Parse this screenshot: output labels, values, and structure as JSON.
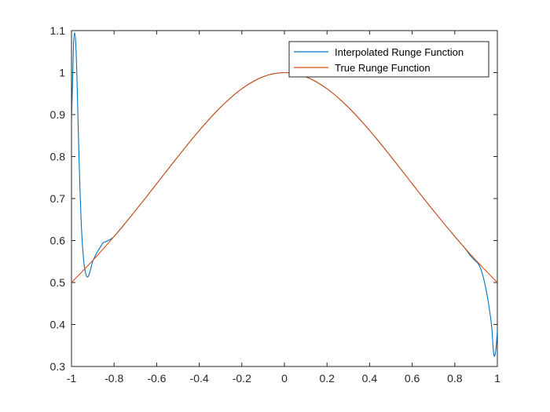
{
  "chart_data": {
    "type": "line",
    "xlim": [
      -1,
      1
    ],
    "ylim": [
      0.3,
      1.1
    ],
    "xticks": [
      -1,
      -0.8,
      -0.6,
      -0.4,
      -0.2,
      0,
      0.2,
      0.4,
      0.6,
      0.8,
      1
    ],
    "yticks": [
      0.3,
      0.4,
      0.5,
      0.6,
      0.7,
      0.8,
      0.9,
      1,
      1.1
    ],
    "xtick_labels": [
      "-1",
      "-0.8",
      "-0.6",
      "-0.4",
      "-0.2",
      "0",
      "0.2",
      "0.4",
      "0.6",
      "0.8",
      "1"
    ],
    "ytick_labels": [
      "0.3",
      "0.4",
      "0.5",
      "0.6",
      "0.7",
      "0.8",
      "0.9",
      "1",
      "1.1"
    ],
    "grid": false,
    "box": true,
    "legend_position": "top-right",
    "series": [
      {
        "name": "Interpolated Runge Function",
        "color": "#0072BD",
        "x": [
          -1.0,
          -0.995,
          -0.99,
          -0.985,
          -0.98,
          -0.975,
          -0.97,
          -0.965,
          -0.96,
          -0.955,
          -0.95,
          -0.945,
          -0.94,
          -0.935,
          -0.93,
          -0.925,
          -0.92,
          -0.915,
          -0.91,
          -0.905,
          -0.9,
          -0.89,
          -0.88,
          -0.87,
          -0.86,
          -0.85,
          -0.8,
          -0.7,
          -0.6,
          -0.5,
          -0.4,
          -0.3,
          -0.2,
          -0.1,
          0.0,
          0.1,
          0.2,
          0.3,
          0.4,
          0.5,
          0.6,
          0.7,
          0.8,
          0.85,
          0.87,
          0.89,
          0.9,
          0.91,
          0.92,
          0.93,
          0.94,
          0.95,
          0.96,
          0.97,
          0.975,
          0.98,
          0.985,
          0.99,
          0.995,
          1.0
        ],
        "y": [
          0.875,
          0.98,
          1.07,
          1.095,
          1.07,
          1.0,
          0.9,
          0.8,
          0.72,
          0.65,
          0.6,
          0.565,
          0.54,
          0.525,
          0.516,
          0.513,
          0.516,
          0.523,
          0.532,
          0.542,
          0.551,
          0.562,
          0.572,
          0.58,
          0.588,
          0.595,
          0.6098,
          0.6711,
          0.7353,
          0.8,
          0.8621,
          0.9174,
          0.9615,
          0.9901,
          1.0,
          0.9901,
          0.9615,
          0.9174,
          0.8621,
          0.8,
          0.7353,
          0.6711,
          0.6098,
          0.58,
          0.566,
          0.555,
          0.55,
          0.545,
          0.535,
          0.52,
          0.5,
          0.475,
          0.445,
          0.41,
          0.385,
          0.345,
          0.325,
          0.33,
          0.35,
          0.385
        ]
      },
      {
        "name": "True Runge Function",
        "color": "#D95319",
        "x": [
          -1.0,
          -0.9,
          -0.8,
          -0.7,
          -0.6,
          -0.5,
          -0.4,
          -0.3,
          -0.2,
          -0.1,
          0.0,
          0.1,
          0.2,
          0.3,
          0.4,
          0.5,
          0.6,
          0.7,
          0.8,
          0.9,
          1.0
        ],
        "y": [
          0.5,
          0.5525,
          0.6098,
          0.6711,
          0.7353,
          0.8,
          0.8621,
          0.9174,
          0.9615,
          0.9901,
          1.0,
          0.9901,
          0.9615,
          0.9174,
          0.8621,
          0.8,
          0.7353,
          0.6711,
          0.6098,
          0.5525,
          0.5
        ]
      }
    ]
  }
}
